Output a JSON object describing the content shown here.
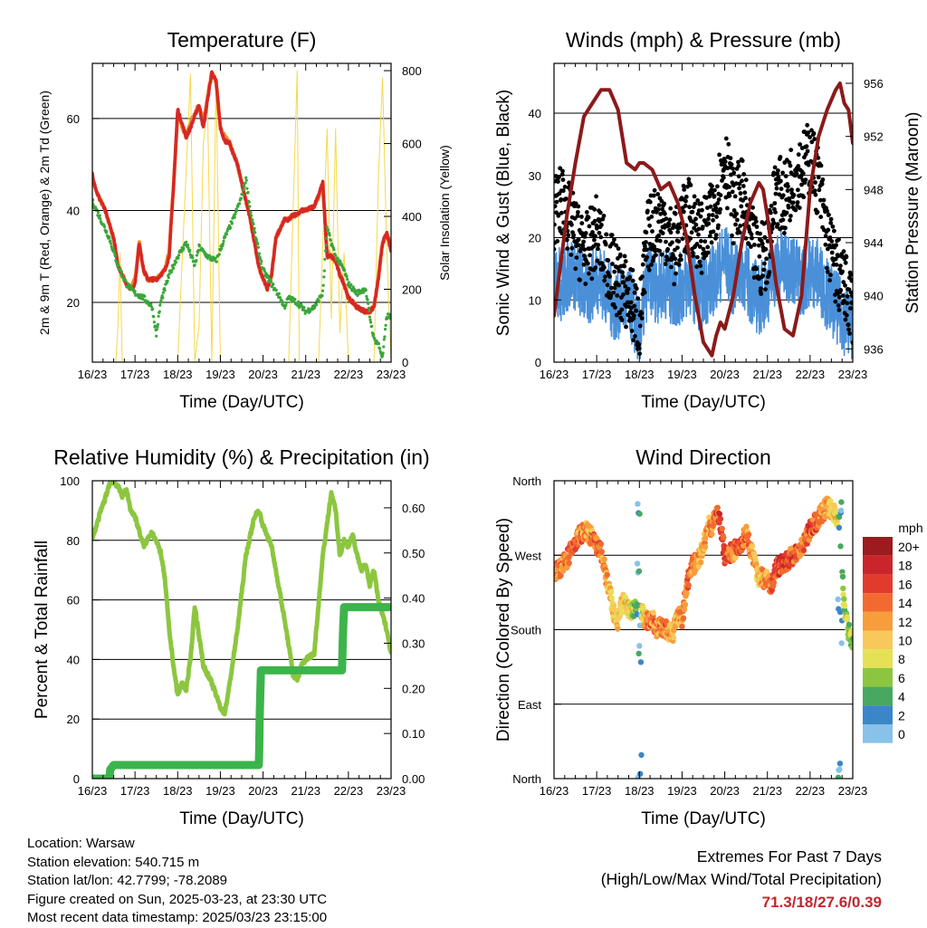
{
  "x_ticks": [
    "16/23",
    "17/23",
    "18/23",
    "19/23",
    "20/23",
    "21/23",
    "22/23",
    "23/23"
  ],
  "colors": {
    "temp_2m": "#d62728",
    "temp_9m": "#f08a24",
    "dewpoint": "#3aa63a",
    "solar": "#f5d94a",
    "wind": "#4a90d9",
    "gust": "#000000",
    "pressure": "#8b1a1a",
    "rh": "#8cc63f",
    "precip": "#3cb44b",
    "extremes_values": "#c0272d"
  },
  "chart_data": [
    {
      "type": "line",
      "title": "Temperature (F)",
      "xlabel": "Time (Day/UTC)",
      "ylabel": "2m & 9m T (Red, Orange) & 2m Td (Green)",
      "ylabel_right": "Solar Insolation (Yellow)",
      "xlim": [
        0,
        7
      ],
      "ylim": [
        7,
        72
      ],
      "ylim_right": [
        0,
        820
      ],
      "yticks": [
        20,
        40,
        60
      ],
      "yticks_right": [
        0,
        200,
        400,
        600,
        800
      ],
      "grid": true,
      "series": [
        {
          "axis": "left",
          "x": [
            0,
            0.1,
            0.3,
            0.5,
            0.6,
            0.7,
            0.8,
            0.9,
            1.0,
            1.1,
            1.2,
            1.3,
            1.5,
            1.7,
            1.8,
            1.9,
            2.0,
            2.2,
            2.3,
            2.5,
            2.6,
            2.8,
            2.9,
            3.0,
            3.1,
            3.2,
            3.4,
            3.5,
            3.7,
            3.8,
            3.9,
            4.0,
            4.1,
            4.2,
            4.3,
            4.5,
            4.6,
            4.7,
            4.8,
            4.9,
            5.0,
            5.2,
            5.4,
            5.5,
            5.6,
            5.7,
            5.8,
            5.9,
            6.0,
            6.2,
            6.4,
            6.5,
            6.6,
            6.7,
            6.8,
            6.9,
            7.0
          ],
          "values": [
            48,
            44,
            40,
            34,
            28,
            26,
            24,
            23,
            24,
            33,
            27,
            25,
            25,
            27,
            30,
            45,
            62,
            56,
            58,
            63,
            58,
            70,
            68,
            58,
            55,
            55,
            50,
            46,
            38,
            33,
            28,
            25,
            23,
            26,
            34,
            38,
            38,
            39,
            39,
            40,
            40,
            41,
            46,
            30,
            30,
            29,
            26,
            24,
            21,
            19,
            18,
            18,
            19,
            25,
            33,
            35,
            31
          ]
        },
        {
          "axis": "left",
          "x": [
            0,
            0.1,
            0.3,
            0.5,
            0.6,
            0.7,
            0.8,
            0.9,
            1.0,
            1.1,
            1.2,
            1.3,
            1.5,
            1.7,
            1.8,
            1.9,
            2.0,
            2.2,
            2.3,
            2.5,
            2.6,
            2.8,
            2.9,
            3.0,
            3.1,
            3.2,
            3.4,
            3.5,
            3.7,
            3.8,
            3.9,
            4.0,
            4.1,
            4.2,
            4.3,
            4.5,
            4.6,
            4.7,
            4.8,
            4.9,
            5.0,
            5.2,
            5.4,
            5.5,
            5.6,
            5.7,
            5.8,
            5.9,
            6.0,
            6.2,
            6.4,
            6.5,
            6.6,
            6.7,
            6.8,
            6.9,
            7.0
          ],
          "values": [
            47,
            44,
            40,
            34,
            28,
            26,
            24,
            23,
            25,
            33,
            27,
            25,
            25,
            27,
            31,
            45,
            61,
            56,
            59,
            63,
            59,
            70,
            68,
            58,
            56,
            55,
            50,
            46,
            38,
            33,
            28,
            25,
            23,
            26,
            34,
            38,
            38,
            39,
            39,
            40,
            40,
            41,
            45,
            31,
            30,
            29,
            26,
            24,
            21,
            19,
            18,
            18,
            19,
            25,
            33,
            35,
            32
          ]
        },
        {
          "axis": "left",
          "x": [
            0,
            0.2,
            0.4,
            0.6,
            0.8,
            1.0,
            1.2,
            1.4,
            1.5,
            1.6,
            1.8,
            2.0,
            2.2,
            2.4,
            2.5,
            2.7,
            2.9,
            3.1,
            3.3,
            3.5,
            3.6,
            3.7,
            3.9,
            4.0,
            4.2,
            4.4,
            4.5,
            4.6,
            4.8,
            5.0,
            5.2,
            5.4,
            5.5,
            5.7,
            5.9,
            6.0,
            6.2,
            6.4,
            6.5,
            6.6,
            6.7,
            6.8,
            6.9,
            7.0
          ],
          "values": [
            42,
            38,
            34,
            28,
            24,
            22,
            21,
            19,
            13,
            20,
            26,
            30,
            33,
            28,
            32,
            30,
            29,
            34,
            38,
            43,
            47,
            40,
            31,
            27,
            24,
            21,
            19,
            21,
            20,
            18,
            19,
            22,
            36,
            30,
            27,
            24,
            22,
            23,
            17,
            12,
            11,
            8,
            17,
            17
          ]
        },
        {
          "axis": "right",
          "x": [
            0,
            0.3,
            0.55,
            0.6,
            0.65,
            0.7,
            0.8,
            1.0,
            1.3,
            1.6,
            1.9,
            2.0,
            2.15,
            2.3,
            2.4,
            2.5,
            2.6,
            2.7,
            2.8,
            2.9,
            3.0,
            3.3,
            3.6,
            3.9,
            4.0,
            4.4,
            4.6,
            4.8,
            4.85,
            5.3,
            5.5,
            5.6,
            5.7,
            5.8,
            5.9,
            6.0,
            6.3,
            6.6,
            6.7,
            6.8,
            6.9,
            7.0
          ],
          "values": [
            0,
            0,
            0,
            100,
            300,
            0,
            0,
            0,
            0,
            0,
            0,
            0,
            400,
            790,
            0,
            100,
            600,
            700,
            0,
            780,
            0,
            0,
            0,
            0,
            0,
            0,
            0,
            800,
            0,
            0,
            640,
            120,
            640,
            80,
            300,
            0,
            0,
            0,
            500,
            780,
            300,
            0
          ]
        }
      ]
    },
    {
      "type": "line",
      "title": "Winds (mph) & Pressure (mb)",
      "xlabel": "Time (Day/UTC)",
      "ylabel": "Sonic Wind & Gust (Blue, Black)",
      "ylabel_right": "Station Pressure (Maroon)",
      "xlim": [
        0,
        7
      ],
      "ylim": [
        0,
        48
      ],
      "ylim_right": [
        935,
        957.5
      ],
      "yticks": [
        0,
        10,
        20,
        30,
        40
      ],
      "yticks_right": [
        936,
        940,
        944,
        948,
        952,
        956
      ],
      "grid": true,
      "series": [
        {
          "axis": "left",
          "x": [
            0,
            0.2,
            0.4,
            0.6,
            0.8,
            1.0,
            1.2,
            1.4,
            1.6,
            1.8,
            2.0,
            2.2,
            2.4,
            2.6,
            2.8,
            3.0,
            3.2,
            3.4,
            3.6,
            3.8,
            4.0,
            4.2,
            4.4,
            4.6,
            4.8,
            5.0,
            5.2,
            5.4,
            5.6,
            5.8,
            6.0,
            6.2,
            6.4,
            6.6,
            6.8,
            7.0
          ],
          "values": [
            14,
            12,
            15,
            13,
            11,
            14,
            12,
            9,
            10,
            9,
            4,
            14,
            12,
            13,
            11,
            12,
            13,
            11,
            12,
            14,
            17,
            13,
            15,
            12,
            10,
            12,
            15,
            16,
            15,
            13,
            15,
            14,
            11,
            9,
            7,
            6
          ]
        },
        {
          "axis": "left",
          "x": [
            0,
            0.2,
            0.4,
            0.6,
            0.8,
            1.0,
            1.2,
            1.4,
            1.6,
            1.8,
            2.0,
            2.2,
            2.4,
            2.6,
            2.8,
            3.0,
            3.2,
            3.4,
            3.6,
            3.8,
            4.0,
            4.2,
            4.4,
            4.6,
            4.8,
            5.0,
            5.2,
            5.4,
            5.6,
            5.8,
            6.0,
            6.2,
            6.4,
            6.6,
            6.8,
            7.0
          ],
          "values": [
            24,
            26,
            22,
            19,
            18,
            21,
            17,
            14,
            12,
            10,
            6,
            20,
            23,
            22,
            18,
            22,
            24,
            20,
            21,
            26,
            33,
            25,
            27,
            20,
            16,
            18,
            28,
            26,
            30,
            31,
            33,
            29,
            20,
            15,
            12,
            9
          ]
        },
        {
          "axis": "right",
          "x": [
            0,
            0.1,
            0.3,
            0.5,
            0.7,
            0.9,
            1.1,
            1.3,
            1.5,
            1.7,
            1.9,
            2.0,
            2.1,
            2.3,
            2.5,
            2.7,
            2.9,
            3.1,
            3.3,
            3.5,
            3.7,
            3.8,
            3.9,
            4.0,
            4.2,
            4.4,
            4.6,
            4.8,
            4.9,
            5.0,
            5.2,
            5.4,
            5.6,
            5.8,
            6.0,
            6.2,
            6.4,
            6.6,
            6.7,
            6.8,
            6.9,
            7.0
          ],
          "values": [
            938.5,
            941,
            946,
            950,
            953.5,
            954.5,
            955.5,
            955.5,
            954,
            950,
            949.5,
            950,
            950,
            949.5,
            948,
            948.5,
            947,
            944.5,
            940,
            936.5,
            935.5,
            937,
            938,
            937.5,
            940,
            944,
            947,
            948.5,
            948,
            946,
            941,
            937.5,
            937,
            940,
            948,
            952,
            954,
            955.5,
            956,
            954.5,
            954,
            951.5
          ]
        }
      ]
    },
    {
      "type": "line",
      "title": "Relative Humidity (%) & Precipitation (in)",
      "xlabel": "Time (Day/UTC)",
      "ylabel": "Percent & Total Rainfall",
      "xlim": [
        0,
        7
      ],
      "ylim": [
        0,
        100
      ],
      "ylim_right": [
        0,
        0.66
      ],
      "yticks": [
        0,
        20,
        40,
        60,
        80,
        100
      ],
      "yticks_right": [
        0.0,
        0.1,
        0.2,
        0.3,
        0.4,
        0.5,
        0.6
      ],
      "grid": true,
      "series": [
        {
          "axis": "left",
          "x": [
            0,
            0.1,
            0.2,
            0.3,
            0.4,
            0.5,
            0.6,
            0.7,
            0.8,
            0.9,
            1.0,
            1.2,
            1.4,
            1.6,
            1.7,
            1.8,
            1.9,
            2.0,
            2.1,
            2.2,
            2.3,
            2.4,
            2.6,
            2.8,
            3.0,
            3.1,
            3.2,
            3.4,
            3.6,
            3.8,
            3.9,
            4.0,
            4.2,
            4.4,
            4.6,
            4.7,
            4.8,
            4.9,
            5.0,
            5.2,
            5.4,
            5.6,
            5.7,
            5.8,
            5.9,
            6.0,
            6.1,
            6.2,
            6.3,
            6.4,
            6.5,
            6.6,
            6.7,
            6.8,
            6.9,
            7.0
          ],
          "values": [
            81,
            85,
            90,
            94,
            99,
            100,
            98,
            95,
            97,
            90,
            88,
            78,
            83,
            76,
            67,
            50,
            38,
            28,
            32,
            30,
            40,
            58,
            38,
            32,
            24,
            22,
            30,
            50,
            75,
            88,
            90,
            85,
            78,
            62,
            45,
            35,
            33,
            38,
            40,
            42,
            75,
            96,
            90,
            75,
            80,
            78,
            82,
            75,
            70,
            72,
            65,
            70,
            60,
            55,
            50,
            42
          ]
        },
        {
          "axis": "right",
          "x": [
            0,
            0.4,
            0.42,
            0.5,
            3.9,
            3.91,
            3.92,
            3.93,
            3.94,
            3.95,
            5.85,
            5.86,
            5.87,
            5.88,
            5.9,
            7.0
          ],
          "values": [
            0,
            0,
            0.02,
            0.03,
            0.03,
            0.06,
            0.13,
            0.17,
            0.2,
            0.24,
            0.24,
            0.28,
            0.31,
            0.34,
            0.38,
            0.38
          ]
        }
      ]
    },
    {
      "type": "scatter",
      "title": "Wind Direction",
      "xlabel": "Time (Day/UTC)",
      "ylabel": "Direction (Colored By Speed)",
      "xlim": [
        0,
        7
      ],
      "ylim": [
        0,
        360
      ],
      "yticks": [
        0,
        90,
        180,
        270,
        360
      ],
      "ytick_labels": [
        "North",
        "East",
        "South",
        "West",
        "North"
      ],
      "grid": true,
      "series": [
        {
          "x": [
            0,
            0.15,
            0.3,
            0.45,
            0.6,
            0.75,
            0.9,
            1.0,
            1.1,
            1.2,
            1.3,
            1.4,
            1.5,
            1.6,
            1.7,
            1.8,
            1.9,
            2.0,
            2.1,
            2.2,
            2.3,
            2.4,
            2.5,
            2.6,
            2.7,
            2.8,
            2.9,
            3.0,
            3.1,
            3.2,
            3.3,
            3.4,
            3.5,
            3.6,
            3.7,
            3.8,
            3.9,
            4.0,
            4.2,
            4.4,
            4.5,
            4.6,
            4.7,
            4.8,
            5.0,
            5.1,
            5.2,
            5.4,
            5.6,
            5.8,
            6.0,
            6.2,
            6.4,
            6.6,
            6.7,
            6.8,
            6.9,
            7.0
          ],
          "values": [
            250,
            255,
            265,
            280,
            295,
            300,
            290,
            280,
            275,
            250,
            225,
            200,
            190,
            215,
            210,
            200,
            205,
            210,
            195,
            190,
            195,
            180,
            185,
            180,
            178,
            175,
            200,
            190,
            230,
            255,
            260,
            265,
            280,
            305,
            305,
            320,
            310,
            270,
            275,
            285,
            300,
            280,
            260,
            245,
            240,
            230,
            255,
            260,
            270,
            280,
            300,
            315,
            330,
            320,
            290,
            210,
            180,
            165
          ]
        }
      ]
    }
  ],
  "legend": {
    "title": "mph",
    "labels": [
      "20+",
      "18",
      "16",
      "14",
      "12",
      "10",
      "8",
      "6",
      "4",
      "2",
      "0"
    ],
    "colors": [
      "#9b1b1e",
      "#c9252b",
      "#e23b2e",
      "#f26a30",
      "#f79d3c",
      "#f8c85a",
      "#e6e055",
      "#8cc63f",
      "#48a862",
      "#3a86c8",
      "#88c1ea",
      "#cfe8f7"
    ]
  },
  "info": {
    "location": "Location: Warsaw",
    "elevation": "Station elevation: 540.715 m",
    "latlon": "Station lat/lon: 42.7799; -78.2089",
    "created": "Figure created on Sun, 2025-03-23, at 23:30 UTC",
    "recent": "Most recent data timestamp: 2025/03/23 23:15:00"
  },
  "extremes": {
    "line1": "Extremes For Past 7 Days",
    "line2": "(High/Low/Max Wind/Total Precipitation)",
    "values": "71.3/18/27.6/0.39"
  }
}
